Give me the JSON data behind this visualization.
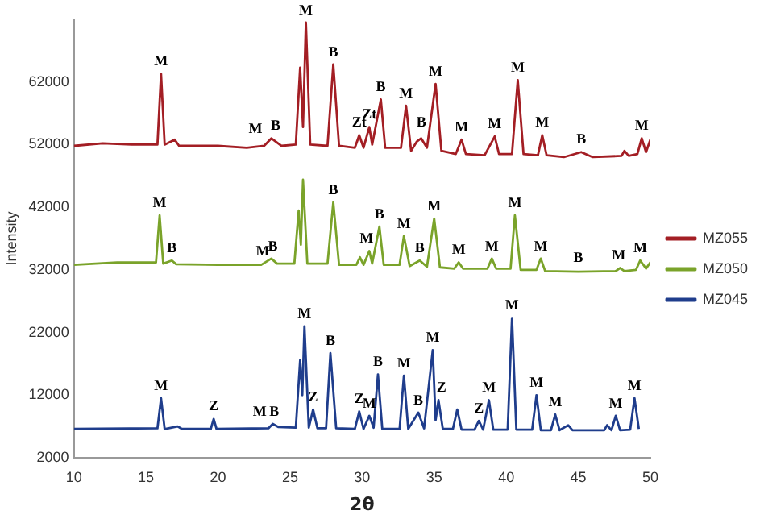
{
  "chart_data": {
    "type": "line",
    "xlabel": "2θ",
    "ylabel": "Intensity",
    "xlim": [
      10,
      50
    ],
    "xticks": [
      10,
      15,
      20,
      25,
      30,
      35,
      40,
      45,
      50
    ],
    "ylim": [
      2000,
      72000
    ],
    "yticks": [
      2000,
      12000,
      22000,
      32000,
      42000,
      52000,
      62000
    ],
    "grid": false,
    "legend": "right",
    "marker": "none",
    "line_style": "solid",
    "series": [
      {
        "name": "MZ055",
        "color": "#a31e24",
        "x": [
          10,
          12,
          14,
          15.8,
          16.05,
          16.3,
          17,
          17.3,
          20,
          22,
          23.2,
          23.7,
          24.0,
          24.4,
          25.4,
          25.7,
          25.9,
          26.1,
          26.4,
          27.6,
          28.0,
          28.4,
          29.5,
          29.8,
          30.1,
          30.5,
          30.7,
          31.3,
          31.6,
          32.7,
          33.05,
          33.4,
          33.8,
          34.1,
          34.5,
          35.1,
          35.5,
          36.5,
          36.9,
          37.2,
          38.5,
          39.2,
          39.5,
          40.4,
          40.8,
          41.2,
          42.2,
          42.5,
          42.8,
          44,
          45.2,
          46,
          48,
          48.2,
          48.5,
          49.1,
          49.4,
          49.7,
          50
        ],
        "values": [
          51800,
          52200,
          52000,
          52000,
          63300,
          52000,
          52800,
          51800,
          51800,
          51500,
          51800,
          53000,
          52500,
          51800,
          52000,
          64300,
          54800,
          71500,
          52000,
          51800,
          64800,
          51800,
          51500,
          53500,
          51500,
          54800,
          52000,
          59200,
          51500,
          51500,
          58200,
          51000,
          52500,
          53000,
          51500,
          61700,
          51000,
          50500,
          52800,
          50500,
          50300,
          53300,
          50500,
          50500,
          62300,
          50500,
          50300,
          53500,
          50300,
          50000,
          50800,
          50000,
          50200,
          51000,
          50200,
          50500,
          53000,
          50800,
          52800
        ]
      },
      {
        "name": "MZ050",
        "color": "#7aa32a",
        "x": [
          10,
          13,
          15.7,
          15.95,
          16.2,
          16.8,
          17.1,
          20,
          23,
          23.7,
          24.1,
          25.3,
          25.6,
          25.75,
          25.9,
          26.2,
          27.6,
          28.0,
          28.4,
          29.6,
          29.85,
          30.1,
          30.5,
          30.7,
          31.2,
          31.5,
          32.6,
          32.9,
          33.3,
          34.0,
          34.5,
          35.0,
          35.4,
          36.4,
          36.7,
          37.0,
          38.7,
          39.0,
          39.3,
          40.3,
          40.6,
          41.0,
          42.1,
          42.4,
          42.7,
          45,
          47.6,
          47.9,
          48.2,
          49,
          49.3,
          49.7,
          50
        ],
        "values": [
          32800,
          33200,
          33200,
          40700,
          33000,
          33500,
          32900,
          32800,
          32800,
          33800,
          33000,
          33000,
          41500,
          36000,
          46400,
          33000,
          33000,
          42800,
          32800,
          32800,
          34000,
          32800,
          35000,
          33000,
          38900,
          32800,
          32800,
          37400,
          32600,
          33500,
          32500,
          40200,
          32400,
          32200,
          33200,
          32200,
          32200,
          33800,
          32200,
          32200,
          40700,
          32000,
          32000,
          33800,
          31800,
          31700,
          31800,
          32300,
          31800,
          32000,
          33500,
          32200,
          33200
        ]
      },
      {
        "name": "MZ045",
        "color": "#1f3d8c",
        "x": [
          10,
          15.8,
          16.05,
          16.3,
          17.2,
          17.5,
          19.5,
          19.7,
          19.9,
          23.5,
          23.8,
          24.2,
          25.4,
          25.7,
          25.85,
          26.0,
          26.3,
          26.6,
          26.9,
          27.5,
          27.8,
          28.2,
          29.5,
          29.8,
          30.1,
          30.5,
          30.8,
          31.1,
          31.4,
          32.6,
          32.9,
          33.2,
          33.9,
          34.3,
          34.9,
          35.1,
          35.3,
          35.6,
          36.3,
          36.6,
          36.9,
          37.8,
          38.1,
          38.4,
          38.8,
          39.1,
          40.1,
          40.4,
          40.7,
          41.8,
          42.1,
          42.4,
          43.1,
          43.4,
          43.7,
          44.3,
          44.6,
          46.8,
          47.0,
          47.3,
          47.6,
          47.9,
          48.6,
          48.9,
          49.2
        ],
        "values": [
          6600,
          6700,
          11500,
          6600,
          7000,
          6600,
          6600,
          8200,
          6600,
          6700,
          7400,
          6900,
          6800,
          17600,
          12000,
          23000,
          6800,
          9700,
          6700,
          6700,
          18700,
          6700,
          6600,
          9400,
          6600,
          8700,
          6800,
          15300,
          6600,
          6600,
          15100,
          6600,
          9200,
          6700,
          19200,
          8000,
          11200,
          6600,
          6600,
          9700,
          6500,
          6500,
          7900,
          6500,
          11200,
          6500,
          6500,
          24300,
          6500,
          6500,
          12000,
          6400,
          6400,
          8900,
          6400,
          7200,
          6400,
          6400,
          7200,
          6400,
          8700,
          6400,
          6500,
          11500,
          6600
        ]
      }
    ],
    "annotations": [
      {
        "text": "M",
        "x": 16.05,
        "y": 63300
      },
      {
        "text": "M",
        "x": 22.6,
        "y": 52500
      },
      {
        "text": "B",
        "x": 24.0,
        "y": 53000
      },
      {
        "text": "M",
        "x": 26.1,
        "y": 71500
      },
      {
        "text": "B",
        "x": 28.0,
        "y": 64800
      },
      {
        "text": "Zt",
        "x": 29.8,
        "y": 53500
      },
      {
        "text": "Zt",
        "x": 30.5,
        "y": 54800
      },
      {
        "text": "B",
        "x": 31.3,
        "y": 59200
      },
      {
        "text": "M",
        "x": 33.05,
        "y": 58200
      },
      {
        "text": "B",
        "x": 34.1,
        "y": 53500
      },
      {
        "text": "M",
        "x": 35.1,
        "y": 61700
      },
      {
        "text": "M",
        "x": 36.9,
        "y": 52800
      },
      {
        "text": "M",
        "x": 39.2,
        "y": 53300
      },
      {
        "text": "M",
        "x": 40.8,
        "y": 62300
      },
      {
        "text": "M",
        "x": 42.5,
        "y": 53500
      },
      {
        "text": "B",
        "x": 45.2,
        "y": 50800
      },
      {
        "text": "M",
        "x": 49.4,
        "y": 53000
      },
      {
        "text": "M",
        "x": 15.95,
        "y": 40700
      },
      {
        "text": "B",
        "x": 16.8,
        "y": 33500
      },
      {
        "text": "M",
        "x": 23.1,
        "y": 33000
      },
      {
        "text": "B",
        "x": 23.8,
        "y": 33800
      },
      {
        "text": "B",
        "x": 28.0,
        "y": 42800
      },
      {
        "text": "M",
        "x": 30.3,
        "y": 35000
      },
      {
        "text": "B",
        "x": 31.2,
        "y": 38900
      },
      {
        "text": "M",
        "x": 32.9,
        "y": 37400
      },
      {
        "text": "B",
        "x": 34.0,
        "y": 33500
      },
      {
        "text": "M",
        "x": 35.0,
        "y": 40200
      },
      {
        "text": "M",
        "x": 36.7,
        "y": 33200
      },
      {
        "text": "M",
        "x": 39.0,
        "y": 33800
      },
      {
        "text": "M",
        "x": 40.6,
        "y": 40700
      },
      {
        "text": "M",
        "x": 42.4,
        "y": 33800
      },
      {
        "text": "B",
        "x": 45.0,
        "y": 32000
      },
      {
        "text": "M",
        "x": 47.8,
        "y": 32300
      },
      {
        "text": "M",
        "x": 49.3,
        "y": 33500
      },
      {
        "text": "M",
        "x": 16.05,
        "y": 11500
      },
      {
        "text": "Z",
        "x": 19.7,
        "y": 8200
      },
      {
        "text": "M",
        "x": 22.9,
        "y": 7400
      },
      {
        "text": "B",
        "x": 23.9,
        "y": 7400
      },
      {
        "text": "M",
        "x": 26.0,
        "y": 23000
      },
      {
        "text": "Z",
        "x": 26.6,
        "y": 9700
      },
      {
        "text": "B",
        "x": 27.8,
        "y": 18700
      },
      {
        "text": "Z",
        "x": 29.8,
        "y": 9400
      },
      {
        "text": "M",
        "x": 30.5,
        "y": 8700
      },
      {
        "text": "B",
        "x": 31.1,
        "y": 15300
      },
      {
        "text": "M",
        "x": 32.9,
        "y": 15100
      },
      {
        "text": "B",
        "x": 33.9,
        "y": 9200
      },
      {
        "text": "M",
        "x": 34.9,
        "y": 19200
      },
      {
        "text": "Z",
        "x": 35.5,
        "y": 11200
      },
      {
        "text": "Z",
        "x": 38.1,
        "y": 7900
      },
      {
        "text": "M",
        "x": 38.8,
        "y": 11200
      },
      {
        "text": "M",
        "x": 40.4,
        "y": 24300
      },
      {
        "text": "M",
        "x": 42.1,
        "y": 12000
      },
      {
        "text": "M",
        "x": 43.4,
        "y": 8900
      },
      {
        "text": "M",
        "x": 47.6,
        "y": 8700
      },
      {
        "text": "M",
        "x": 48.9,
        "y": 11500
      }
    ]
  }
}
